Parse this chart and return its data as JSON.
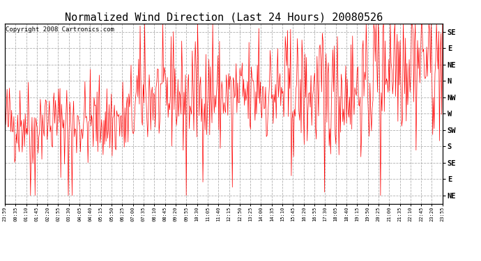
{
  "title": "Normalized Wind Direction (Last 24 Hours) 20080526",
  "copyright_text": "Copyright 2008 Cartronics.com",
  "line_color": "#ff0000",
  "bg_color": "#ffffff",
  "grid_color": "#b0b0b0",
  "ytick_labels": [
    "SE",
    "E",
    "NE",
    "N",
    "NW",
    "W",
    "SW",
    "S",
    "SE",
    "E",
    "NE"
  ],
  "ytick_values": [
    11,
    10,
    9,
    8,
    7,
    6,
    5,
    4,
    3,
    2,
    1
  ],
  "xtick_labels": [
    "23:59",
    "00:35",
    "01:10",
    "01:45",
    "02:20",
    "02:55",
    "03:30",
    "04:05",
    "04:40",
    "05:15",
    "05:50",
    "06:25",
    "07:00",
    "07:35",
    "08:10",
    "08:45",
    "09:20",
    "09:55",
    "10:30",
    "11:05",
    "11:40",
    "12:15",
    "12:50",
    "13:25",
    "14:00",
    "14:35",
    "15:10",
    "15:45",
    "16:20",
    "16:55",
    "17:30",
    "18:05",
    "18:40",
    "19:15",
    "19:50",
    "20:25",
    "21:00",
    "21:35",
    "22:10",
    "22:45",
    "23:20",
    "23:55"
  ],
  "ylim": [
    0.5,
    11.5
  ],
  "seed": 42,
  "n_points": 580,
  "title_fontsize": 11,
  "copyright_fontsize": 6.5,
  "figwidth": 6.9,
  "figheight": 3.75,
  "dpi": 100
}
